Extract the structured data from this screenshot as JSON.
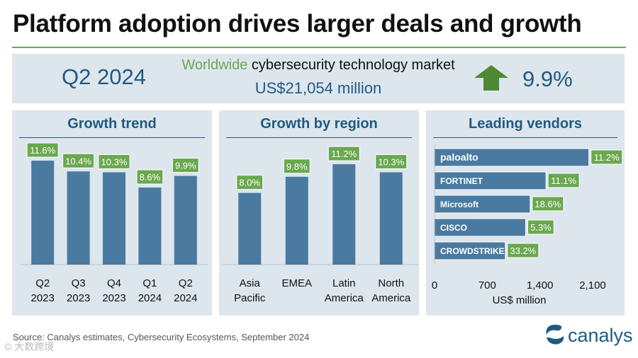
{
  "title": "Platform adoption drives larger deals and growth",
  "hero": {
    "quarter": "Q2 2024",
    "market_prefix": "Worldwide",
    "market_rest": " cybersecurity technology market",
    "market_value": "US$21,054 million",
    "growth": "9.9%"
  },
  "colors": {
    "bar": "#4a7aa0",
    "label_fill": "#6aa84f",
    "panel_bg": "#dde6ed",
    "heading": "#1f5a82",
    "rule": "#6aa84f"
  },
  "footer": {
    "source": "Source: Canalys estimates, Cybersecurity Ecosystems, September 2024",
    "logo_text": "canalys",
    "watermark": "© 大数跨境"
  },
  "chart_data": [
    {
      "type": "bar",
      "title": "Growth trend",
      "categories": [
        [
          "Q2",
          "2023"
        ],
        [
          "Q3",
          "2023"
        ],
        [
          "Q4",
          "2023"
        ],
        [
          "Q1",
          "2024"
        ],
        [
          "Q2",
          "2024"
        ]
      ],
      "values": [
        11.6,
        10.4,
        10.3,
        8.6,
        9.9
      ],
      "data_labels": [
        "11.6%",
        "10.4%",
        "10.3%",
        "8.6%",
        "9.9%"
      ],
      "ylim": [
        0,
        12
      ]
    },
    {
      "type": "bar",
      "title": "Growth by region",
      "categories": [
        [
          "Asia",
          "Pacific"
        ],
        [
          "EMEA"
        ],
        [
          "Latin",
          "America"
        ],
        [
          "North",
          "America"
        ]
      ],
      "values": [
        8.0,
        9.8,
        11.2,
        10.3
      ],
      "data_labels": [
        "8.0%",
        "9.8%",
        "11.2%",
        "10.3%"
      ],
      "ylim": [
        0,
        12
      ]
    },
    {
      "type": "bar",
      "orientation": "horizontal",
      "title": "Leading vendors",
      "categories": [
        "paloalto",
        "FORTINET",
        "Microsoft",
        "CISCO",
        "CROWDSTRIKE"
      ],
      "values": [
        2050,
        1480,
        1270,
        1210,
        940
      ],
      "data_labels": [
        "11.2%",
        "11.1%",
        "18.6%",
        "5.3%",
        "33.2%"
      ],
      "xlabel": "US$ million",
      "xticks": [
        0,
        700,
        1400,
        2100
      ],
      "xtick_labels": [
        "0",
        "700",
        "1,400",
        "2,100"
      ],
      "xlim": [
        0,
        2100
      ]
    }
  ]
}
